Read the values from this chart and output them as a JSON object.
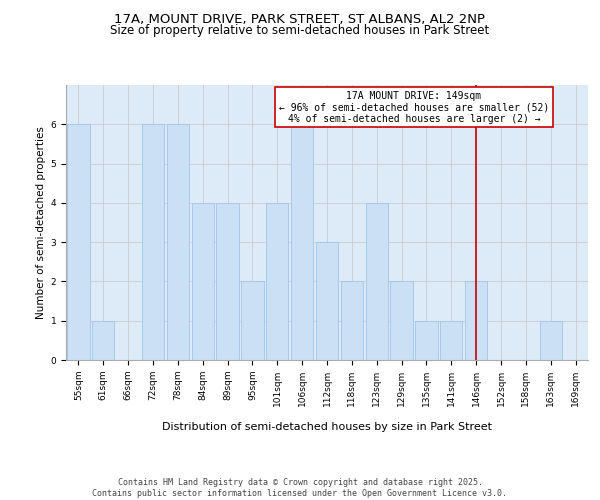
{
  "title1": "17A, MOUNT DRIVE, PARK STREET, ST ALBANS, AL2 2NP",
  "title2": "Size of property relative to semi-detached houses in Park Street",
  "xlabel": "Distribution of semi-detached houses by size in Park Street",
  "ylabel": "Number of semi-detached properties",
  "categories": [
    "55sqm",
    "61sqm",
    "66sqm",
    "72sqm",
    "78sqm",
    "84sqm",
    "89sqm",
    "95sqm",
    "101sqm",
    "106sqm",
    "112sqm",
    "118sqm",
    "123sqm",
    "129sqm",
    "135sqm",
    "141sqm",
    "146sqm",
    "152sqm",
    "158sqm",
    "163sqm",
    "169sqm"
  ],
  "values": [
    6,
    1,
    0,
    6,
    6,
    4,
    4,
    2,
    4,
    6,
    3,
    2,
    4,
    2,
    1,
    1,
    2,
    0,
    0,
    1,
    0
  ],
  "bar_color": "#cce0f5",
  "bar_edge_color": "#a0c4e8",
  "grid_color": "#cccccc",
  "bg_color": "#ddeaf7",
  "vline_x": 16.0,
  "vline_color": "#cc0000",
  "annotation_text": "17A MOUNT DRIVE: 149sqm\n← 96% of semi-detached houses are smaller (52)\n4% of semi-detached houses are larger (2) →",
  "annotation_box_color": "#cc0000",
  "ylim": [
    0,
    7
  ],
  "yticks": [
    0,
    1,
    2,
    3,
    4,
    5,
    6
  ],
  "footnote": "Contains HM Land Registry data © Crown copyright and database right 2025.\nContains public sector information licensed under the Open Government Licence v3.0.",
  "title1_fontsize": 9.5,
  "title2_fontsize": 8.5,
  "xlabel_fontsize": 8,
  "ylabel_fontsize": 7.5,
  "tick_fontsize": 6.5,
  "annotation_fontsize": 7,
  "footnote_fontsize": 6
}
